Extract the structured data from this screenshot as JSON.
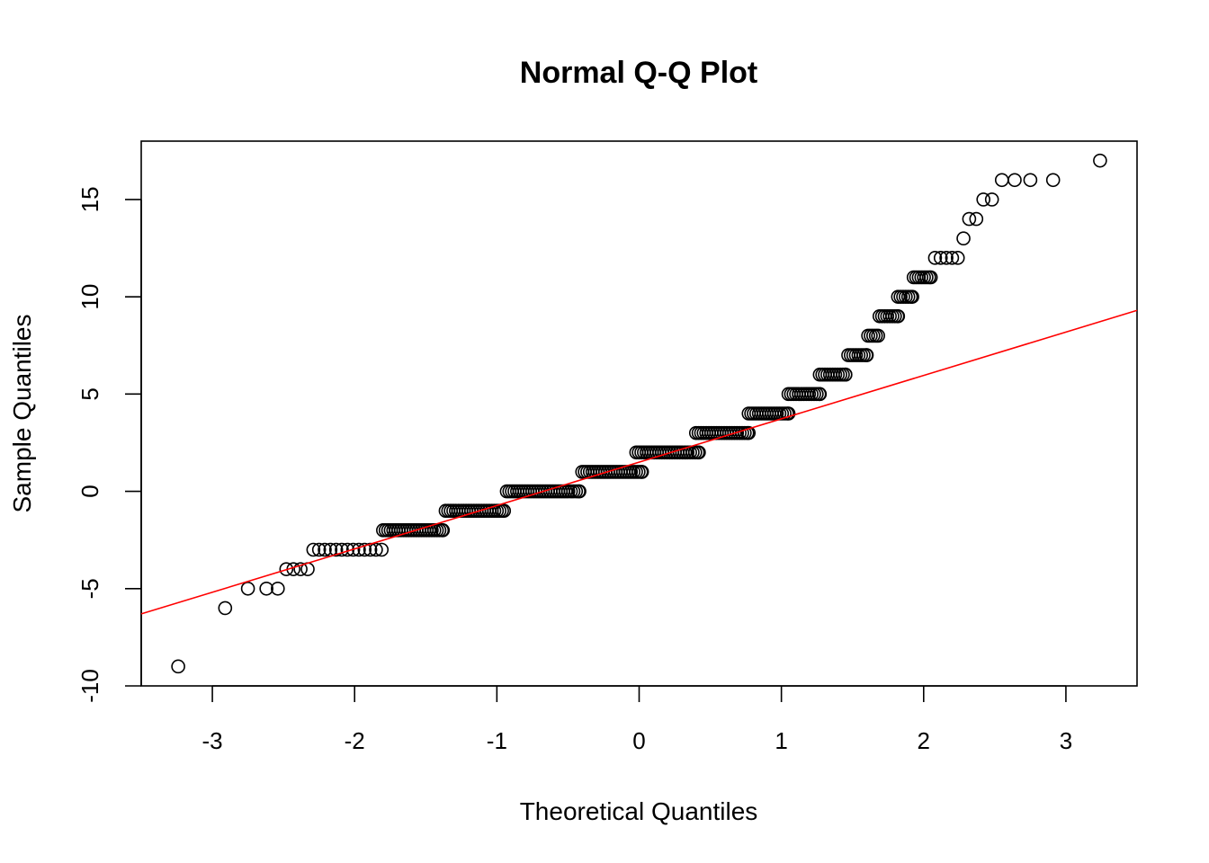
{
  "chart_data": {
    "type": "scatter",
    "title": "Normal Q-Q Plot",
    "xlabel": "Theoretical Quantiles",
    "ylabel": "Sample Quantiles",
    "xlim": [
      -3.5,
      3.5
    ],
    "ylim": [
      -10,
      18
    ],
    "x_ticks": [
      -3,
      -2,
      -1,
      0,
      1,
      2,
      3
    ],
    "y_ticks": [
      -10,
      -5,
      0,
      5,
      10,
      15
    ],
    "x_tick_labels": [
      "-3",
      "-2",
      "-1",
      "0",
      "1",
      "2",
      "3"
    ],
    "y_tick_labels": [
      "-10",
      "-5",
      "0",
      "5",
      "10",
      "15"
    ],
    "grid": false,
    "legend": "none",
    "point_style": "open-circle",
    "point_color": "#000000",
    "reference_line": {
      "color": "#ff0000",
      "from": [
        -3.5,
        -6.3
      ],
      "to": [
        3.5,
        9.3
      ]
    },
    "points": [
      [
        -3.24,
        -9
      ],
      [
        -2.91,
        -6
      ],
      [
        -2.75,
        -5
      ],
      [
        -2.62,
        -5
      ],
      [
        -2.54,
        -5
      ],
      [
        -2.48,
        -4
      ],
      [
        -2.43,
        -4
      ],
      [
        -2.38,
        -4
      ],
      [
        -2.33,
        -4
      ],
      [
        -2.29,
        -3
      ],
      [
        -2.25,
        -3
      ],
      [
        -2.21,
        -3
      ],
      [
        -2.17,
        -3
      ],
      [
        -2.13,
        -3
      ],
      [
        -2.09,
        -3
      ],
      [
        -2.05,
        -3
      ],
      [
        -2.01,
        -3
      ],
      [
        -1.97,
        -3
      ],
      [
        -1.93,
        -3
      ],
      [
        -1.89,
        -3
      ],
      [
        -1.85,
        -3
      ],
      [
        -1.81,
        -3
      ]
    ],
    "dense_runs": [
      {
        "y": -2,
        "x_from": -1.8,
        "x_to": -1.38
      },
      {
        "y": -1,
        "x_from": -1.36,
        "x_to": -0.95
      },
      {
        "y": 0,
        "x_from": -0.93,
        "x_to": -0.42
      },
      {
        "y": 1,
        "x_from": -0.4,
        "x_to": 0.02
      },
      {
        "y": 2,
        "x_from": -0.02,
        "x_to": 0.42
      },
      {
        "y": 3,
        "x_from": 0.4,
        "x_to": 0.77
      },
      {
        "y": 4,
        "x_from": 0.77,
        "x_to": 1.05
      },
      {
        "y": 5,
        "x_from": 1.05,
        "x_to": 1.27
      },
      {
        "y": 6,
        "x_from": 1.27,
        "x_to": 1.45
      },
      {
        "y": 7,
        "x_from": 1.47,
        "x_to": 1.6
      },
      {
        "y": 8,
        "x_from": 1.61,
        "x_to": 1.68
      },
      {
        "y": 9,
        "x_from": 1.69,
        "x_to": 1.82
      },
      {
        "y": 10,
        "x_from": 1.82,
        "x_to": 1.92
      },
      {
        "y": 11,
        "x_from": 1.93,
        "x_to": 2.05
      }
    ],
    "upper_points": [
      [
        2.08,
        12
      ],
      [
        2.12,
        12
      ],
      [
        2.16,
        12
      ],
      [
        2.2,
        12
      ],
      [
        2.24,
        12
      ],
      [
        2.28,
        13
      ],
      [
        2.32,
        14
      ],
      [
        2.37,
        14
      ],
      [
        2.42,
        15
      ],
      [
        2.48,
        15
      ],
      [
        2.55,
        16
      ],
      [
        2.64,
        16
      ],
      [
        2.75,
        16
      ],
      [
        2.91,
        16
      ],
      [
        3.24,
        17
      ]
    ],
    "dense_run_spacing": 0.018
  }
}
